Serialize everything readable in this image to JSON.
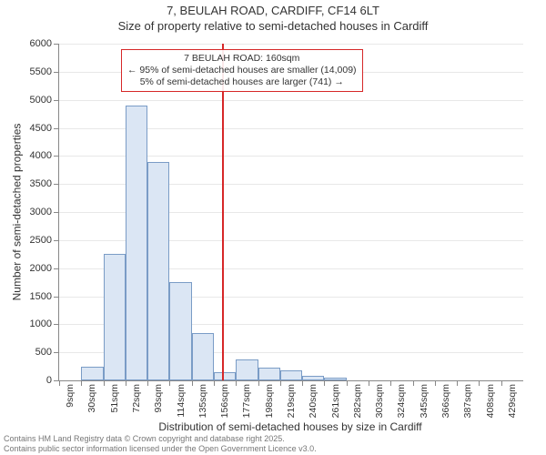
{
  "title_line1": "7, BEULAH ROAD, CARDIFF, CF14 6LT",
  "title_line2": "Size of property relative to semi-detached houses in Cardiff",
  "ylabel": "Number of semi-detached properties",
  "xlabel": "Distribution of semi-detached houses by size in Cardiff",
  "ylim": [
    0,
    6000
  ],
  "ytick_step": 500,
  "bins": [
    {
      "label": "9sqm",
      "value": 0
    },
    {
      "label": "30sqm",
      "value": 250
    },
    {
      "label": "51sqm",
      "value": 2250
    },
    {
      "label": "72sqm",
      "value": 4900
    },
    {
      "label": "93sqm",
      "value": 3900
    },
    {
      "label": "114sqm",
      "value": 1750
    },
    {
      "label": "135sqm",
      "value": 850
    },
    {
      "label": "156sqm",
      "value": 150
    },
    {
      "label": "177sqm",
      "value": 380
    },
    {
      "label": "198sqm",
      "value": 230
    },
    {
      "label": "219sqm",
      "value": 180
    },
    {
      "label": "240sqm",
      "value": 80
    },
    {
      "label": "261sqm",
      "value": 50
    },
    {
      "label": "282sqm",
      "value": 0
    },
    {
      "label": "303sqm",
      "value": 0
    },
    {
      "label": "324sqm",
      "value": 0
    },
    {
      "label": "345sqm",
      "value": 0
    },
    {
      "label": "366sqm",
      "value": 0
    },
    {
      "label": "387sqm",
      "value": 0
    },
    {
      "label": "408sqm",
      "value": 0
    },
    {
      "label": "429sqm",
      "value": 0
    }
  ],
  "reference": {
    "value_sqm": 160,
    "bin_range": [
      9,
      440
    ],
    "annot_title": "7 BEULAH ROAD: 160sqm",
    "annot_line1": "← 95% of semi-detached houses are smaller (14,009)",
    "annot_line2": "5% of semi-detached houses are larger (741) →"
  },
  "colors": {
    "bar_fill": "#dbe6f4",
    "bar_border": "#7a9cc6",
    "refline": "#d62728",
    "grid": "#e8e8e8",
    "axis": "#888888",
    "text": "#333333",
    "footnote": "#777777",
    "background": "#ffffff"
  },
  "fonts": {
    "title_size_pt": 13,
    "axis_label_size_pt": 12,
    "tick_size_pt": 11,
    "annot_size_pt": 10.5,
    "footnote_size_pt": 9
  },
  "footnote_line1": "Contains HM Land Registry data © Crown copyright and database right 2025.",
  "footnote_line2": "Contains public sector information licensed under the Open Government Licence v3.0."
}
